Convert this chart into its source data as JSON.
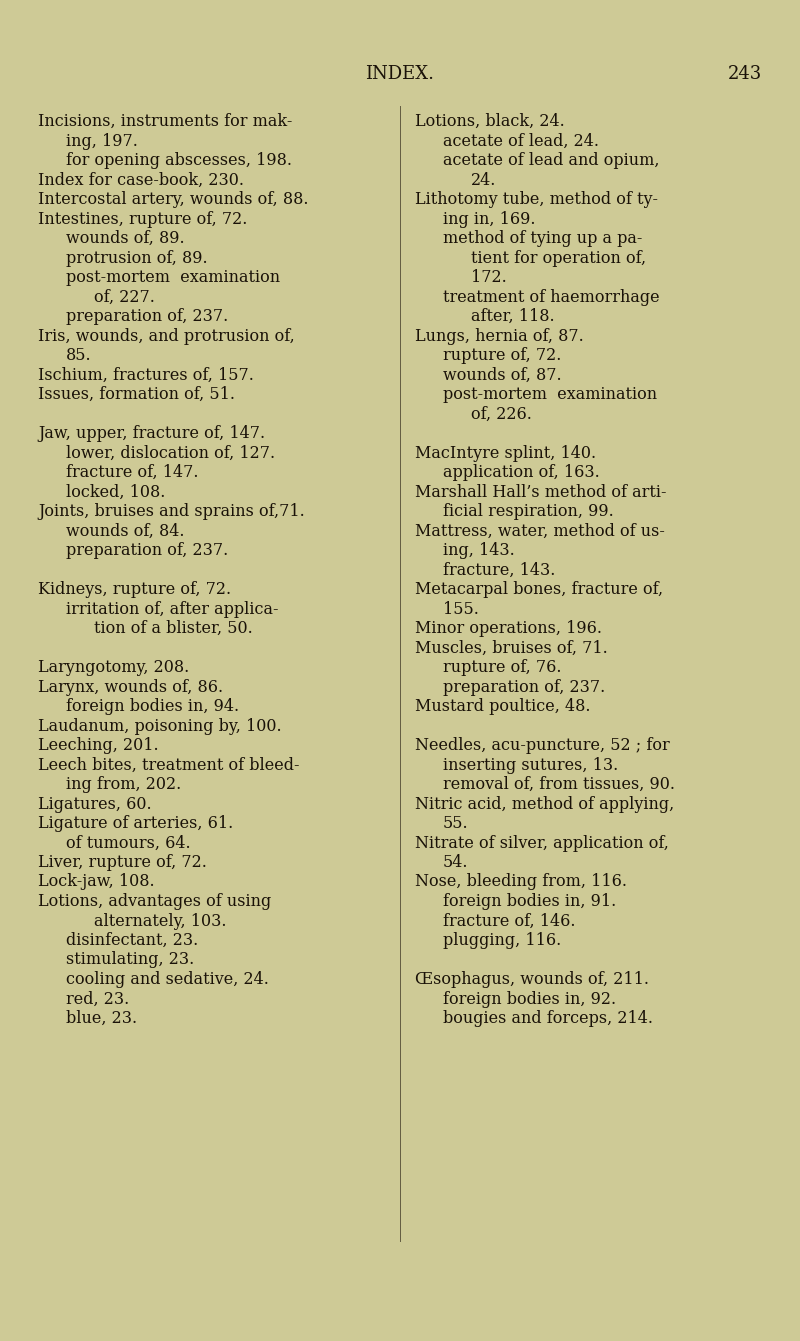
{
  "background_color": "#ceca96",
  "text_color": "#1a1208",
  "page_title": "INDEX.",
  "page_number": "243",
  "title_fontsize": 13,
  "body_fontsize": 11.5,
  "smallcaps_fontsize": 11.5,
  "left_column": [
    {
      "text": "Incisions, instruments for mak-",
      "indent": 0,
      "style": "normal"
    },
    {
      "text": "ing, 197.",
      "indent": 1,
      "style": "normal"
    },
    {
      "text": "for opening abscesses, 198.",
      "indent": 1,
      "style": "normal"
    },
    {
      "text": "Index for case-book, 230.",
      "indent": 0,
      "style": "normal"
    },
    {
      "text": "Intercostal artery, wounds of, 88.",
      "indent": 0,
      "style": "normal"
    },
    {
      "text": "Intestines, rupture of, 72.",
      "indent": 0,
      "style": "normal"
    },
    {
      "text": "wounds of, 89.",
      "indent": 1,
      "style": "normal"
    },
    {
      "text": "protrusion of, 89.",
      "indent": 1,
      "style": "normal"
    },
    {
      "text": "post-mortem  examination",
      "indent": 1,
      "style": "normal"
    },
    {
      "text": "of, 227.",
      "indent": 2,
      "style": "normal"
    },
    {
      "text": "preparation of, 237.",
      "indent": 1,
      "style": "normal"
    },
    {
      "text": "Iris, wounds, and protrusion of,",
      "indent": 0,
      "style": "normal"
    },
    {
      "text": "85.",
      "indent": 1,
      "style": "normal"
    },
    {
      "text": "Ischium, fractures of, 157.",
      "indent": 0,
      "style": "normal"
    },
    {
      "text": "Issues, formation of, 51.",
      "indent": 0,
      "style": "normal"
    },
    {
      "text": "",
      "indent": 0,
      "style": "normal"
    },
    {
      "text": "Jaw, upper, fracture of, 147.",
      "indent": 0,
      "style": "smallcaps",
      "prefix": "J",
      "prefix_display": "AW",
      "full": "Jaw, upper, fracture of, 147."
    },
    {
      "text": "lower, dislocation of, 127.",
      "indent": 1,
      "style": "normal"
    },
    {
      "text": "fracture of, 147.",
      "indent": 1,
      "style": "normal"
    },
    {
      "text": "locked, 108.",
      "indent": 1,
      "style": "normal"
    },
    {
      "text": "Joints, bruises and sprains of,71.",
      "indent": 0,
      "style": "normal"
    },
    {
      "text": "wounds of, 84.",
      "indent": 1,
      "style": "normal"
    },
    {
      "text": "preparation of, 237.",
      "indent": 1,
      "style": "normal"
    },
    {
      "text": "",
      "indent": 0,
      "style": "normal"
    },
    {
      "text": "Kidneys, rupture of, 72.",
      "indent": 0,
      "style": "smallcaps",
      "prefix": "K",
      "prefix_display": "IDNEYS",
      "full": "Kidneys, rupture of, 72."
    },
    {
      "text": "irritation of, after applica-",
      "indent": 1,
      "style": "normal"
    },
    {
      "text": "tion of a blister, 50.",
      "indent": 2,
      "style": "normal"
    },
    {
      "text": "",
      "indent": 0,
      "style": "normal"
    },
    {
      "text": "Laryngotomy, 208.",
      "indent": 0,
      "style": "smallcaps",
      "prefix": "L",
      "prefix_display": "ARYNGOTOMY",
      "full": "Laryngotomy, 208."
    },
    {
      "text": "Larynx, wounds of, 86.",
      "indent": 0,
      "style": "normal"
    },
    {
      "text": "foreign bodies in, 94.",
      "indent": 1,
      "style": "normal"
    },
    {
      "text": "Laudanum, poisoning by, 100.",
      "indent": 0,
      "style": "normal"
    },
    {
      "text": "Leeching, 201.",
      "indent": 0,
      "style": "normal"
    },
    {
      "text": "Leech bites, treatment of bleed-",
      "indent": 0,
      "style": "normal"
    },
    {
      "text": "ing from, 202.",
      "indent": 1,
      "style": "normal"
    },
    {
      "text": "Ligatures, 60.",
      "indent": 0,
      "style": "normal"
    },
    {
      "text": "Ligature of arteries, 61.",
      "indent": 0,
      "style": "normal"
    },
    {
      "text": "of tumours, 64.",
      "indent": 1,
      "style": "normal"
    },
    {
      "text": "Liver, rupture of, 72.",
      "indent": 0,
      "style": "normal"
    },
    {
      "text": "Lock-jaw, 108.",
      "indent": 0,
      "style": "normal"
    },
    {
      "text": "Lotions, advantages of using",
      "indent": 0,
      "style": "normal"
    },
    {
      "text": "alternately, 103.",
      "indent": 2,
      "style": "normal"
    },
    {
      "text": "disinfectant, 23.",
      "indent": 1,
      "style": "normal"
    },
    {
      "text": "stimulating, 23.",
      "indent": 1,
      "style": "normal"
    },
    {
      "text": "cooling and sedative, 24.",
      "indent": 1,
      "style": "normal"
    },
    {
      "text": "red, 23.",
      "indent": 1,
      "style": "normal"
    },
    {
      "text": "blue, 23.",
      "indent": 1,
      "style": "normal"
    }
  ],
  "right_column": [
    {
      "text": "Lotions, black, 24.",
      "indent": 0,
      "style": "normal"
    },
    {
      "text": "acetate of lead, 24.",
      "indent": 1,
      "style": "normal"
    },
    {
      "text": "acetate of lead and opium,",
      "indent": 1,
      "style": "normal"
    },
    {
      "text": "24.",
      "indent": 2,
      "style": "normal"
    },
    {
      "text": "Lithotomy tube, method of ty-",
      "indent": 0,
      "style": "normal"
    },
    {
      "text": "ing in, 169.",
      "indent": 1,
      "style": "normal"
    },
    {
      "text": "method of tying up a pa-",
      "indent": 1,
      "style": "normal"
    },
    {
      "text": "tient for operation of,",
      "indent": 2,
      "style": "normal"
    },
    {
      "text": "172.",
      "indent": 2,
      "style": "normal"
    },
    {
      "text": "treatment of haemorrhage",
      "indent": 1,
      "style": "normal"
    },
    {
      "text": "after, 118.",
      "indent": 2,
      "style": "normal"
    },
    {
      "text": "Lungs, hernia of, 87.",
      "indent": 0,
      "style": "normal"
    },
    {
      "text": "rupture of, 72.",
      "indent": 1,
      "style": "normal"
    },
    {
      "text": "wounds of, 87.",
      "indent": 1,
      "style": "normal"
    },
    {
      "text": "post-mortem  examination",
      "indent": 1,
      "style": "normal"
    },
    {
      "text": "of, 226.",
      "indent": 2,
      "style": "normal"
    },
    {
      "text": "",
      "indent": 0,
      "style": "normal"
    },
    {
      "text": "MacIntyre splint, 140.",
      "indent": 0,
      "style": "smallcaps",
      "prefix": "M",
      "prefix_display": "ACINTYRE",
      "full": "MacIntyre splint, 140."
    },
    {
      "text": "application of, 163.",
      "indent": 1,
      "style": "normal"
    },
    {
      "text": "Marshall Hall’s method of arti-",
      "indent": 0,
      "style": "normal"
    },
    {
      "text": "ficial respiration, 99.",
      "indent": 1,
      "style": "normal"
    },
    {
      "text": "Mattress, water, method of us-",
      "indent": 0,
      "style": "normal"
    },
    {
      "text": "ing, 143.",
      "indent": 1,
      "style": "normal"
    },
    {
      "text": "fracture, 143.",
      "indent": 1,
      "style": "normal"
    },
    {
      "text": "Metacarpal bones, fracture of,",
      "indent": 0,
      "style": "normal"
    },
    {
      "text": "155.",
      "indent": 1,
      "style": "normal"
    },
    {
      "text": "Minor operations, 196.",
      "indent": 0,
      "style": "normal"
    },
    {
      "text": "Muscles, bruises of, 71.",
      "indent": 0,
      "style": "normal"
    },
    {
      "text": "rupture of, 76.",
      "indent": 1,
      "style": "normal"
    },
    {
      "text": "preparation of, 237.",
      "indent": 1,
      "style": "normal"
    },
    {
      "text": "Mustard poultice, 48.",
      "indent": 0,
      "style": "normal"
    },
    {
      "text": "",
      "indent": 0,
      "style": "normal"
    },
    {
      "text": "Needles, acu-puncture, 52 ; for",
      "indent": 0,
      "style": "smallcaps",
      "prefix": "N",
      "prefix_display": "EEDLES",
      "full": "Needles, acu-puncture, 52 ; for"
    },
    {
      "text": "inserting sutures, 13.",
      "indent": 1,
      "style": "normal"
    },
    {
      "text": "removal of, from tissues, 90.",
      "indent": 1,
      "style": "normal"
    },
    {
      "text": "Nitric acid, method of applying,",
      "indent": 0,
      "style": "normal"
    },
    {
      "text": "55.",
      "indent": 1,
      "style": "normal"
    },
    {
      "text": "Nitrate of silver, application of,",
      "indent": 0,
      "style": "normal"
    },
    {
      "text": "54.",
      "indent": 1,
      "style": "normal"
    },
    {
      "text": "Nose, bleeding from, 116.",
      "indent": 0,
      "style": "normal"
    },
    {
      "text": "foreign bodies in, 91.",
      "indent": 1,
      "style": "normal"
    },
    {
      "text": "fracture of, 146.",
      "indent": 1,
      "style": "normal"
    },
    {
      "text": "plugging, 116.",
      "indent": 1,
      "style": "normal"
    },
    {
      "text": "",
      "indent": 0,
      "style": "normal"
    },
    {
      "text": "Œsophagus, wounds of, 211.",
      "indent": 0,
      "style": "smallcaps",
      "prefix": "Œ",
      "prefix_display": "SOPHAGUS",
      "full": "Œsophagus, wounds of, 211."
    },
    {
      "text": "foreign bodies in, 92.",
      "indent": 1,
      "style": "normal"
    },
    {
      "text": "bougies and forceps, 214.",
      "indent": 1,
      "style": "normal"
    }
  ]
}
